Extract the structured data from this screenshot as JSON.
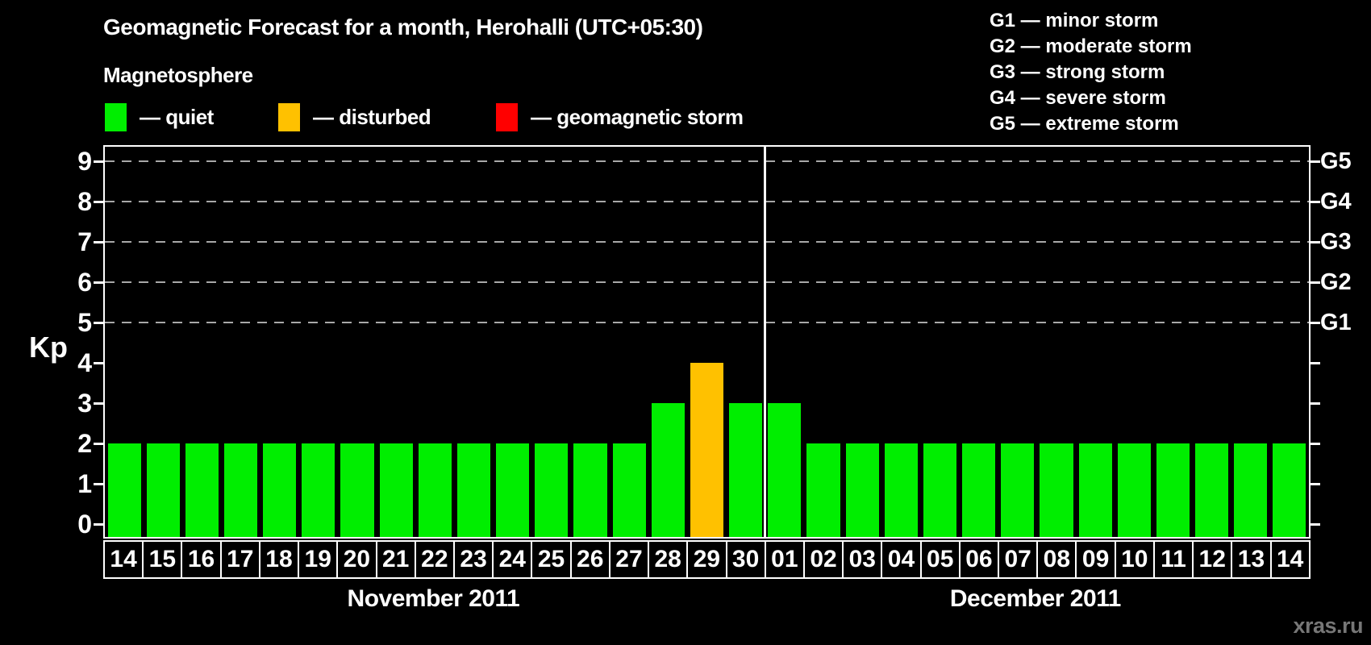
{
  "header": {
    "title": "Geomagnetic Forecast for a month, Herohalli (UTC+05:30)",
    "subtitle": "Magnetosphere",
    "watermark": "xras.ru"
  },
  "legend": {
    "items": [
      {
        "name": "quiet",
        "label": "— quiet",
        "color": "#00ee00"
      },
      {
        "name": "disturbed",
        "label": "— disturbed",
        "color": "#ffc100"
      },
      {
        "name": "storm",
        "label": "— geomagnetic storm",
        "color": "#ff0000"
      }
    ]
  },
  "g_legend": {
    "items": [
      "G1 — minor storm",
      "G2 — moderate storm",
      "G3 — strong storm",
      "G4 — severe storm",
      "G5 — extreme storm"
    ]
  },
  "chart_data": {
    "type": "bar",
    "title": "Geomagnetic Forecast for a month, Herohalli (UTC+05:30)",
    "ylabel": "Kp",
    "ylim": [
      0,
      9
    ],
    "y_ticks": [
      0,
      1,
      2,
      3,
      4,
      5,
      6,
      7,
      8,
      9
    ],
    "gridlines_at": [
      5,
      6,
      7,
      8,
      9
    ],
    "grid": "dashed-horizontal",
    "legend_position": "top",
    "right_axis_labels": [
      {
        "label": "G1",
        "kp": 5
      },
      {
        "label": "G2",
        "kp": 6
      },
      {
        "label": "G3",
        "kp": 7
      },
      {
        "label": "G4",
        "kp": 8
      },
      {
        "label": "G5",
        "kp": 9
      }
    ],
    "months": [
      {
        "label": "November 2011",
        "days": 17
      },
      {
        "label": "December 2011",
        "days": 14
      }
    ],
    "categories": [
      "14",
      "15",
      "16",
      "17",
      "18",
      "19",
      "20",
      "21",
      "22",
      "23",
      "24",
      "25",
      "26",
      "27",
      "28",
      "29",
      "30",
      "01",
      "02",
      "03",
      "04",
      "05",
      "06",
      "07",
      "08",
      "09",
      "10",
      "11",
      "12",
      "13",
      "14"
    ],
    "values": [
      2,
      2,
      2,
      2,
      2,
      2,
      2,
      2,
      2,
      2,
      2,
      2,
      2,
      2,
      3,
      4,
      3,
      3,
      2,
      2,
      2,
      2,
      2,
      2,
      2,
      2,
      2,
      2,
      2,
      2,
      2
    ],
    "statuses": [
      "quiet",
      "quiet",
      "quiet",
      "quiet",
      "quiet",
      "quiet",
      "quiet",
      "quiet",
      "quiet",
      "quiet",
      "quiet",
      "quiet",
      "quiet",
      "quiet",
      "quiet",
      "disturbed",
      "quiet",
      "quiet",
      "quiet",
      "quiet",
      "quiet",
      "quiet",
      "quiet",
      "quiet",
      "quiet",
      "quiet",
      "quiet",
      "quiet",
      "quiet",
      "quiet",
      "quiet"
    ]
  }
}
